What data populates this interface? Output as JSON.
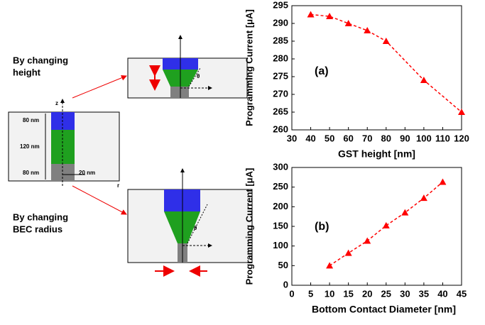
{
  "chart_data": [
    {
      "type": "line",
      "annotation": "(a)",
      "xlabel": "GST height [nm]",
      "ylabel": "Programming Current [μA]",
      "x": [
        40,
        50,
        60,
        70,
        80,
        100,
        120
      ],
      "series": [
        {
          "color": "#ff0000",
          "values": [
            292.5,
            292,
            290,
            288,
            285,
            274,
            265
          ]
        }
      ],
      "xlim": [
        30,
        120
      ],
      "xticks": [
        30,
        40,
        50,
        60,
        70,
        80,
        90,
        100,
        110,
        120
      ],
      "ylim": [
        260,
        295
      ],
      "yticks": [
        260,
        265,
        270,
        275,
        280,
        285,
        290,
        295
      ]
    },
    {
      "type": "line",
      "annotation": "(b)",
      "xlabel": "Bottom Contact Diameter [nm]",
      "ylabel": "Programming Current [μA]",
      "x": [
        10,
        15,
        20,
        25,
        30,
        35,
        40
      ],
      "series": [
        {
          "color": "#ff0000",
          "values": [
            50,
            82,
            113,
            152,
            185,
            222,
            263
          ]
        }
      ],
      "xlim": [
        0,
        45
      ],
      "xticks": [
        0,
        5,
        10,
        15,
        20,
        25,
        30,
        35,
        40,
        45
      ],
      "ylim": [
        0,
        300
      ],
      "yticks": [
        0,
        50,
        100,
        150,
        200,
        250,
        300
      ]
    }
  ],
  "diagram": {
    "label_height": [
      "By changing",
      "height"
    ],
    "label_radius": [
      "By changing",
      "BEC radius"
    ],
    "dims": [
      "80 nm",
      "120 nm",
      "80 nm",
      "20 nm"
    ],
    "axis_z": "z",
    "axis_r": "r",
    "theta": "θ"
  }
}
